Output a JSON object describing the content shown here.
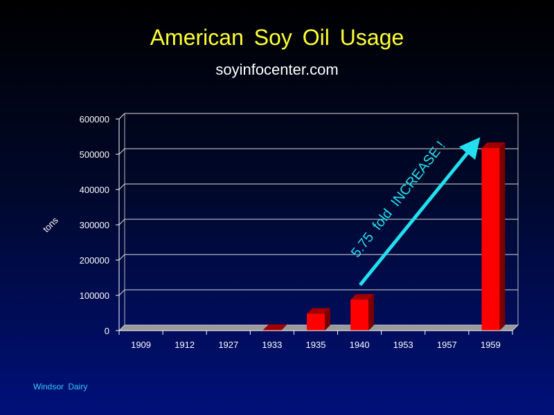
{
  "chart_data": {
    "type": "bar",
    "title": "American  Soy  Oil  Usage",
    "subtitle": "soyinfocenter.com",
    "xlabel": "",
    "ylabel": "tons",
    "categories": [
      "1909",
      "1912",
      "1927",
      "1933",
      "1935",
      "1940",
      "1953",
      "1957",
      "1959"
    ],
    "values": [
      0,
      0,
      0,
      2000,
      48000,
      88000,
      0,
      0,
      518000
    ],
    "ylim": [
      0,
      600000
    ],
    "yticks": [
      "0",
      "100000",
      "200000",
      "300000",
      "400000",
      "500000",
      "600000"
    ],
    "grid": true,
    "legend": "none",
    "annotation": "5.75  fold  INCREASE !",
    "colors": {
      "bar": "#ff0000",
      "annotation": "#22e0f0",
      "title": "#ffff33"
    }
  },
  "footer": "Windsor  Dairy"
}
